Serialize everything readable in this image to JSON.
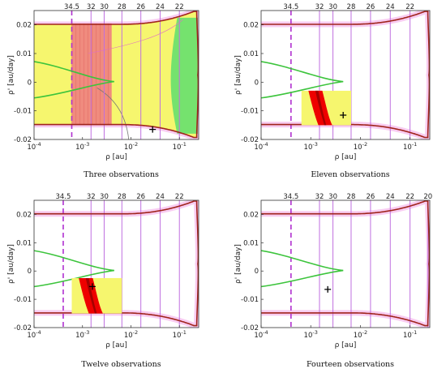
{
  "figure": {
    "colors": {
      "boundary": "#a0241c",
      "green": "#3cc43c",
      "magenta_dashed": "#b030d0",
      "violet_grid": "#c070e0",
      "pink_band": "#f7c6ef",
      "region_yellow": "#f6f66e",
      "region_red": "#ee0000",
      "region_darkred": "#a50000",
      "attributable_green": "#6ee06e",
      "attributable_salmon": "#f08080"
    }
  },
  "chart_data": [
    {
      "type": "scatter",
      "title": "Three observations",
      "xlabel": "ρ [au]",
      "ylabel": "ρ' [au/day]",
      "xscale": "log",
      "xlim": [
        0.0001,
        0.25
      ],
      "ylim": [
        -0.02,
        0.025
      ],
      "xticks": [
        "10^-4",
        "10^-3",
        "10^-2",
        "10^-1"
      ],
      "yticks": [
        "-0.02",
        "-0.01",
        "0",
        "0.01",
        "0.02"
      ],
      "magnitude_labels": [
        "34.5",
        "32",
        "30",
        "28",
        "26",
        "24",
        "22"
      ],
      "magnitude_rho": [
        0.0006,
        0.0015,
        0.0028,
        0.0065,
        0.016,
        0.04,
        0.1
      ],
      "dashed_line_rho": 0.0006,
      "region": "full admissible region shaded (yellow / red / green)",
      "marker": {
        "rho": 0.028,
        "rho_dot": -0.0165
      }
    },
    {
      "type": "scatter",
      "title": "Eleven observations",
      "xlabel": "ρ [au]",
      "ylabel": "ρ' [au/day]",
      "xscale": "log",
      "xlim": [
        0.0001,
        0.25
      ],
      "ylim": [
        -0.02,
        0.025
      ],
      "xticks": [
        "10^-4",
        "10^-3",
        "10^-2",
        "10^-1"
      ],
      "yticks": [
        "-0.02",
        "-0.01",
        "0",
        "0.01",
        "0.02"
      ],
      "magnitude_labels": [
        "34.5",
        "32",
        "30",
        "28",
        "26",
        "24",
        "22"
      ],
      "magnitude_rho": [
        0.0004,
        0.0015,
        0.0028,
        0.0065,
        0.016,
        0.04,
        0.1
      ],
      "dashed_line_rho": 0.0004,
      "box": {
        "rho_min": 0.00065,
        "rho_max": 0.0065,
        "rho_dot_min": -0.015,
        "rho_dot_max": -0.003
      },
      "marker": {
        "rho": 0.0045,
        "rho_dot": -0.0115
      }
    },
    {
      "type": "scatter",
      "title": "Twelve observations",
      "xlabel": "ρ [au]",
      "ylabel": "ρ' [au/day]",
      "xscale": "log",
      "xlim": [
        0.0001,
        0.25
      ],
      "ylim": [
        -0.02,
        0.025
      ],
      "xticks": [
        "10^-4",
        "10^-3",
        "10^-2",
        "10^-1"
      ],
      "yticks": [
        "-0.02",
        "-0.01",
        "0",
        "0.01",
        "0.02"
      ],
      "magnitude_labels": [
        "34.5",
        "32",
        "30",
        "28",
        "26",
        "24",
        "22"
      ],
      "magnitude_rho": [
        0.0004,
        0.0015,
        0.0028,
        0.0065,
        0.016,
        0.04,
        0.1
      ],
      "dashed_line_rho": 0.0004,
      "box": {
        "rho_min": 0.0006,
        "rho_max": 0.0065,
        "rho_dot_min": -0.015,
        "rho_dot_max": -0.0025
      },
      "marker": {
        "rho": 0.0016,
        "rho_dot": -0.0055
      }
    },
    {
      "type": "scatter",
      "title": "Fourteen observations",
      "xlabel": "ρ [au]",
      "ylabel": "ρ' [au/day]",
      "xscale": "log",
      "xlim": [
        0.0001,
        0.25
      ],
      "ylim": [
        -0.02,
        0.025
      ],
      "xticks": [
        "10^-4",
        "10^-3",
        "10^-2",
        "10^-1"
      ],
      "yticks": [
        "-0.02",
        "-0.01",
        "0",
        "0.01",
        "0.02"
      ],
      "magnitude_labels": [
        "34.5",
        "32",
        "30",
        "28",
        "26",
        "24",
        "22",
        "20"
      ],
      "magnitude_rho": [
        0.0004,
        0.0015,
        0.0028,
        0.0065,
        0.016,
        0.04,
        0.1,
        0.23
      ],
      "dashed_line_rho": 0.0004,
      "marker": {
        "rho": 0.0022,
        "rho_dot": -0.0065
      }
    }
  ]
}
